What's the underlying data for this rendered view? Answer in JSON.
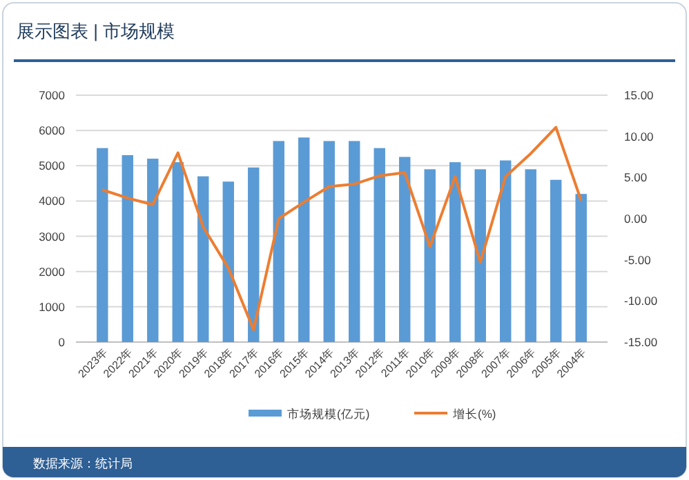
{
  "chart_data": {
    "type": "bar",
    "title": "展示图表 | 市场规模",
    "categories": [
      "2023年",
      "2022年",
      "2021年",
      "2020年",
      "2019年",
      "2018年",
      "2017年",
      "2016年",
      "2015年",
      "2014年",
      "2013年",
      "2012年",
      "2011年",
      "2010年",
      "2009年",
      "2008年",
      "2007年",
      "2006年",
      "2005年",
      "2004年"
    ],
    "series": [
      {
        "name": "市场规模(亿元)",
        "color": "#5b9bd5",
        "values": [
          5500,
          5300,
          5200,
          5100,
          4700,
          4550,
          4950,
          5700,
          5800,
          5700,
          5700,
          5500,
          5250,
          4900,
          5100,
          4900,
          5150,
          4900,
          4600,
          4200
        ]
      },
      {
        "name": "增长(%)",
        "type": "line",
        "axis": "y2",
        "color": "#ed7d31",
        "values": [
          3.5,
          2.5,
          1.7,
          8.0,
          -1.0,
          -6.0,
          -13.5,
          0.0,
          2.0,
          3.9,
          4.2,
          5.2,
          5.6,
          -3.4,
          5.1,
          -5.3,
          5.1,
          7.9,
          11.1,
          2.2
        ]
      }
    ],
    "ylim": [
      0,
      7000
    ],
    "yticks": [
      0,
      1000,
      2000,
      3000,
      4000,
      5000,
      6000,
      7000
    ],
    "y2lim": [
      -15,
      15
    ],
    "y2ticks": [
      {
        "value": -15,
        "label": "-15.00"
      },
      {
        "value": -10,
        "label": "-10.00"
      },
      {
        "value": -5,
        "label": "-5.00"
      },
      {
        "value": 0,
        "label": "0.00"
      },
      {
        "value": 5,
        "label": "5.00"
      },
      {
        "value": 10,
        "label": "10.00"
      },
      {
        "value": 15,
        "label": "15.00"
      }
    ],
    "grid": "y",
    "legend": "bottom",
    "marker": "none",
    "line_style": "solid",
    "annotations": [
      "数据来源：统计局"
    ]
  }
}
